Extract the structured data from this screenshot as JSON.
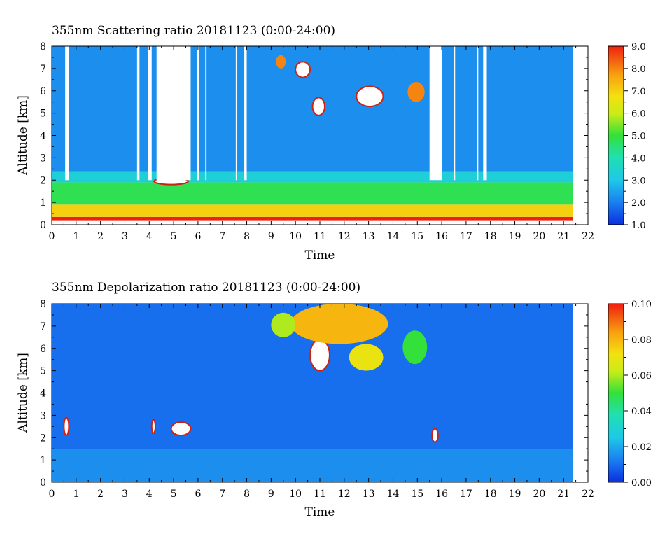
{
  "chart_data": [
    {
      "type": "heatmap",
      "title": "355nm Scattering ratio  20181123 (0:00-24:00)",
      "xlabel": "Time",
      "ylabel": "Altitude [km]",
      "xlim": [
        0,
        22
      ],
      "ylim": [
        0,
        8
      ],
      "x_ticks": [
        "0",
        "1",
        "2",
        "3",
        "4",
        "5",
        "6",
        "7",
        "8",
        "9",
        "10",
        "11",
        "12",
        "13",
        "14",
        "15",
        "16",
        "17",
        "18",
        "19",
        "20",
        "21",
        "22"
      ],
      "y_ticks": [
        "0",
        "1",
        "2",
        "3",
        "4",
        "5",
        "6",
        "7",
        "8"
      ],
      "data_end_time": 21.4,
      "colorbar": {
        "range": [
          1.0,
          9.0
        ],
        "tick_labels": [
          "1.0",
          "2.0",
          "3.0",
          "4.0",
          "5.0",
          "6.0",
          "7.0",
          "8.0",
          "9.0"
        ]
      },
      "features": [
        {
          "kind": "layer",
          "time": [
            0,
            21.4
          ],
          "alt": [
            0.2,
            0.35
          ],
          "value": 9.0
        },
        {
          "kind": "layer",
          "time": [
            0,
            21.4
          ],
          "alt": [
            0.35,
            0.9
          ],
          "value": 7.0
        },
        {
          "kind": "layer",
          "time": [
            0,
            21.4
          ],
          "alt": [
            0.9,
            1.9
          ],
          "value": 4.8
        },
        {
          "kind": "layer",
          "time": [
            0,
            21.4
          ],
          "alt": [
            1.9,
            2.4
          ],
          "value": 3.3
        },
        {
          "kind": "layer",
          "time": [
            0,
            21.4
          ],
          "alt": [
            2.4,
            8
          ],
          "value": 2.2
        },
        {
          "kind": "cloud",
          "time": [
            10.7,
            11.2
          ],
          "alt": [
            4.9,
            5.7
          ],
          "value": 9.0
        },
        {
          "kind": "cloud",
          "time": [
            12.5,
            13.6
          ],
          "alt": [
            5.3,
            6.2
          ],
          "value": 9.0
        },
        {
          "kind": "cloud",
          "time": [
            10.0,
            10.6
          ],
          "alt": [
            6.6,
            7.3
          ],
          "value": 9.0
        },
        {
          "kind": "cloud",
          "time": [
            9.2,
            9.6
          ],
          "alt": [
            7.0,
            7.6
          ],
          "value": 8.0
        },
        {
          "kind": "cloud",
          "time": [
            14.6,
            15.3
          ],
          "alt": [
            5.5,
            6.4
          ],
          "value": 8.0
        },
        {
          "kind": "cloud",
          "time": [
            4.2,
            5.6
          ],
          "alt": [
            1.8,
            2.1
          ],
          "value": 9.0
        }
      ],
      "missing_intervals": [
        [
          0.55,
          0.7
        ],
        [
          3.5,
          3.6
        ],
        [
          3.95,
          4.1
        ],
        [
          4.3,
          5.7
        ],
        [
          5.95,
          6.05
        ],
        [
          6.3,
          6.35
        ],
        [
          7.55,
          7.6
        ],
        [
          7.9,
          8.0
        ],
        [
          15.5,
          16.0
        ],
        [
          16.5,
          16.55
        ],
        [
          17.45,
          17.5
        ],
        [
          17.7,
          17.85
        ]
      ]
    },
    {
      "type": "heatmap",
      "title": "355nm Depolarization ratio  20181123 (0:00-24:00)",
      "xlabel": "Time",
      "ylabel": "Altitude [km]",
      "xlim": [
        0,
        22
      ],
      "ylim": [
        0,
        8
      ],
      "x_ticks": [
        "0",
        "1",
        "2",
        "3",
        "4",
        "5",
        "6",
        "7",
        "8",
        "9",
        "10",
        "11",
        "12",
        "13",
        "14",
        "15",
        "16",
        "17",
        "18",
        "19",
        "20",
        "21",
        "22"
      ],
      "y_ticks": [
        "0",
        "1",
        "2",
        "3",
        "4",
        "5",
        "6",
        "7",
        "8"
      ],
      "data_end_time": 21.4,
      "colorbar": {
        "range": [
          0.0,
          0.1
        ],
        "tick_labels": [
          "0.00",
          "0.02",
          "0.04",
          "0.06",
          "0.08",
          "0.10"
        ]
      },
      "features": [
        {
          "kind": "layer",
          "time": [
            0,
            21.4
          ],
          "alt": [
            0,
            1.5
          ],
          "value": 0.015
        },
        {
          "kind": "layer",
          "time": [
            0,
            21.4
          ],
          "alt": [
            1.5,
            8
          ],
          "value": 0.01
        },
        {
          "kind": "cloud",
          "time": [
            10.6,
            11.4
          ],
          "alt": [
            5.0,
            6.4
          ],
          "value": 0.1
        },
        {
          "kind": "cloud",
          "time": [
            9.8,
            13.8
          ],
          "alt": [
            6.2,
            8.0
          ],
          "value": 0.08
        },
        {
          "kind": "cloud",
          "time": [
            12.2,
            13.6
          ],
          "alt": [
            5.0,
            6.2
          ],
          "value": 0.07
        },
        {
          "kind": "cloud",
          "time": [
            9.0,
            10.0
          ],
          "alt": [
            6.5,
            7.6
          ],
          "value": 0.06
        },
        {
          "kind": "cloud",
          "time": [
            14.4,
            15.4
          ],
          "alt": [
            5.3,
            6.8
          ],
          "value": 0.05
        },
        {
          "kind": "cloud",
          "time": [
            4.9,
            5.7
          ],
          "alt": [
            2.1,
            2.7
          ],
          "value": 0.1
        },
        {
          "kind": "cloud",
          "time": [
            0.5,
            0.7
          ],
          "alt": [
            2.1,
            2.9
          ],
          "value": 0.1
        },
        {
          "kind": "cloud",
          "time": [
            4.1,
            4.25
          ],
          "alt": [
            2.2,
            2.8
          ],
          "value": 0.1
        },
        {
          "kind": "cloud",
          "time": [
            15.6,
            15.85
          ],
          "alt": [
            1.8,
            2.4
          ],
          "value": 0.1
        }
      ]
    }
  ]
}
